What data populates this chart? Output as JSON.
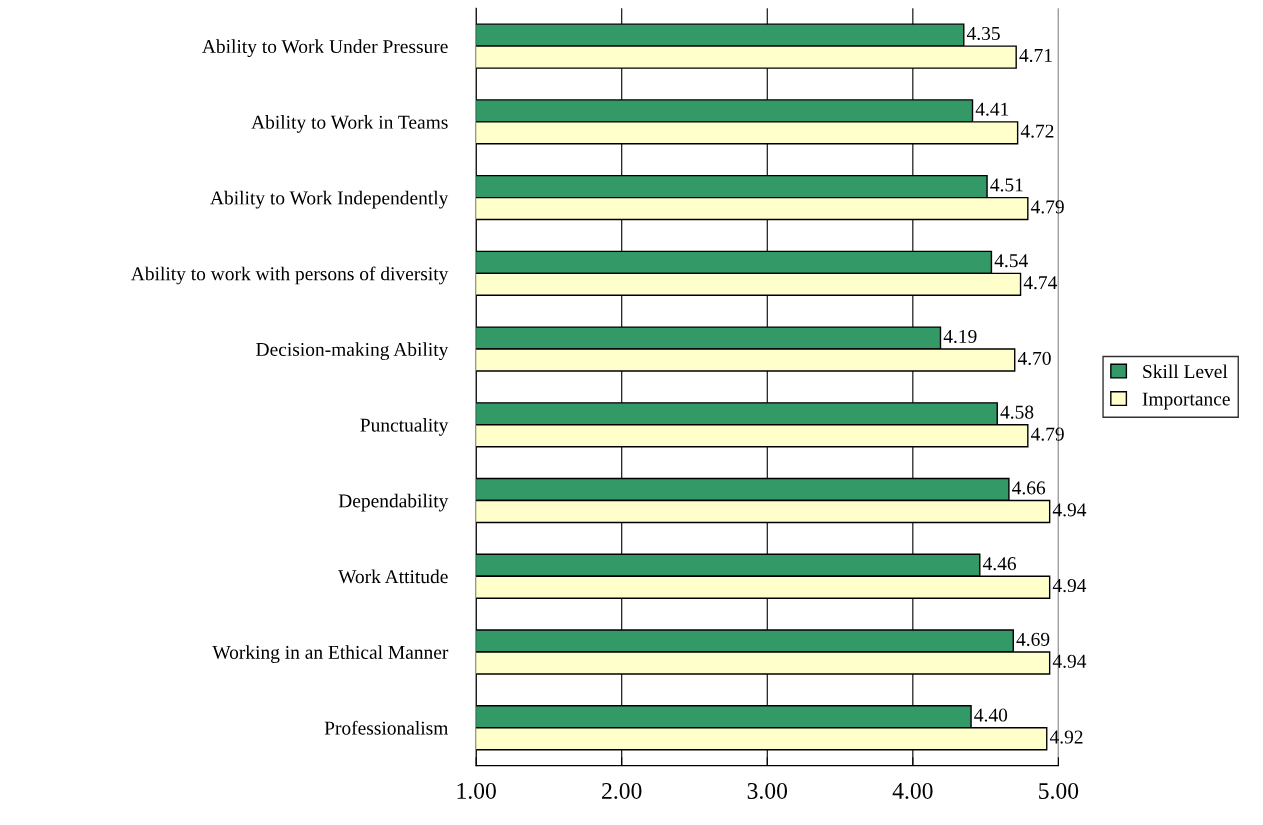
{
  "chart_data": {
    "type": "bar",
    "orientation": "horizontal",
    "categories": [
      "Ability to Work Under Pressure",
      "Ability to Work in Teams",
      "Ability to Work Independently",
      "Ability to work with persons of diversity",
      "Decision-making Ability",
      "Punctuality",
      "Dependability",
      "Work Attitude",
      "Working in an Ethical Manner",
      "Professionalism"
    ],
    "series": [
      {
        "name": "Skill Level",
        "color": "#339966",
        "values": [
          4.35,
          4.41,
          4.51,
          4.54,
          4.19,
          4.58,
          4.66,
          4.46,
          4.69,
          4.4
        ],
        "value_labels": [
          "4.35",
          "4.41",
          "4.51",
          "4.54",
          "4.19",
          "4.58",
          "4.66",
          "4.46",
          "4.69",
          "4.40"
        ]
      },
      {
        "name": "Importance",
        "color": "#ffffcc",
        "values": [
          4.71,
          4.72,
          4.79,
          4.74,
          4.7,
          4.79,
          4.94,
          4.94,
          4.94,
          4.92
        ],
        "value_labels": [
          "4.71",
          "4.72",
          "4.79",
          "4.74",
          "4.70",
          "4.79",
          "4.94",
          "4.94",
          "4.94",
          "4.92"
        ]
      }
    ],
    "xlim": [
      1,
      5
    ],
    "xticks": [
      {
        "value": 1,
        "label": "1.00"
      },
      {
        "value": 2,
        "label": "2.00"
      },
      {
        "value": 3,
        "label": "3.00"
      },
      {
        "value": 4,
        "label": "4.00"
      },
      {
        "value": 5,
        "label": "5.00"
      }
    ],
    "grid": "x",
    "legend": "right"
  }
}
